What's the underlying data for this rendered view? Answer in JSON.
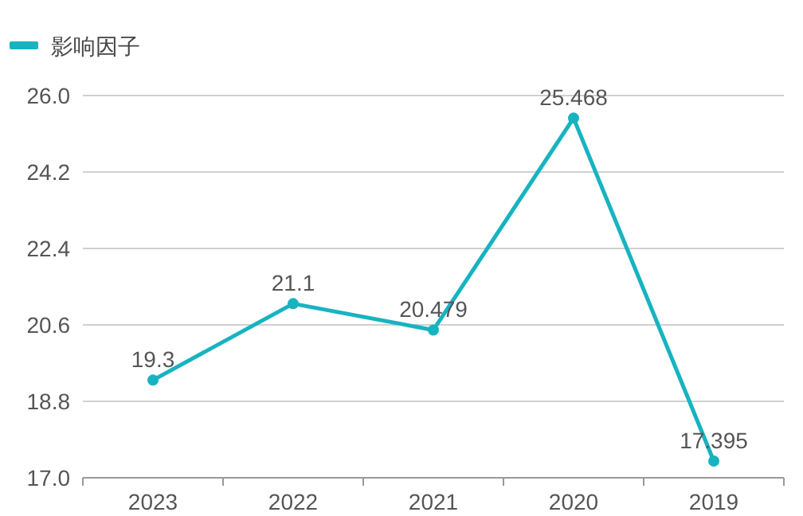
{
  "chart_data": {
    "type": "line",
    "categories": [
      "2023",
      "2022",
      "2021",
      "2020",
      "2019"
    ],
    "series": [
      {
        "name": "影响因子",
        "color": "#17b3c1",
        "values": [
          19.3,
          21.1,
          20.479,
          25.468,
          17.395
        ]
      }
    ],
    "ylim": [
      17.0,
      26.0
    ],
    "yticks": [
      {
        "value": 17,
        "label": "17.0"
      },
      18.8,
      20.6,
      22.4,
      24.2,
      {
        "value": 26,
        "label": "26.0"
      }
    ],
    "grid": "y",
    "legend": "top left",
    "marker": "circle",
    "line_style": "solid",
    "data_labels": true
  }
}
